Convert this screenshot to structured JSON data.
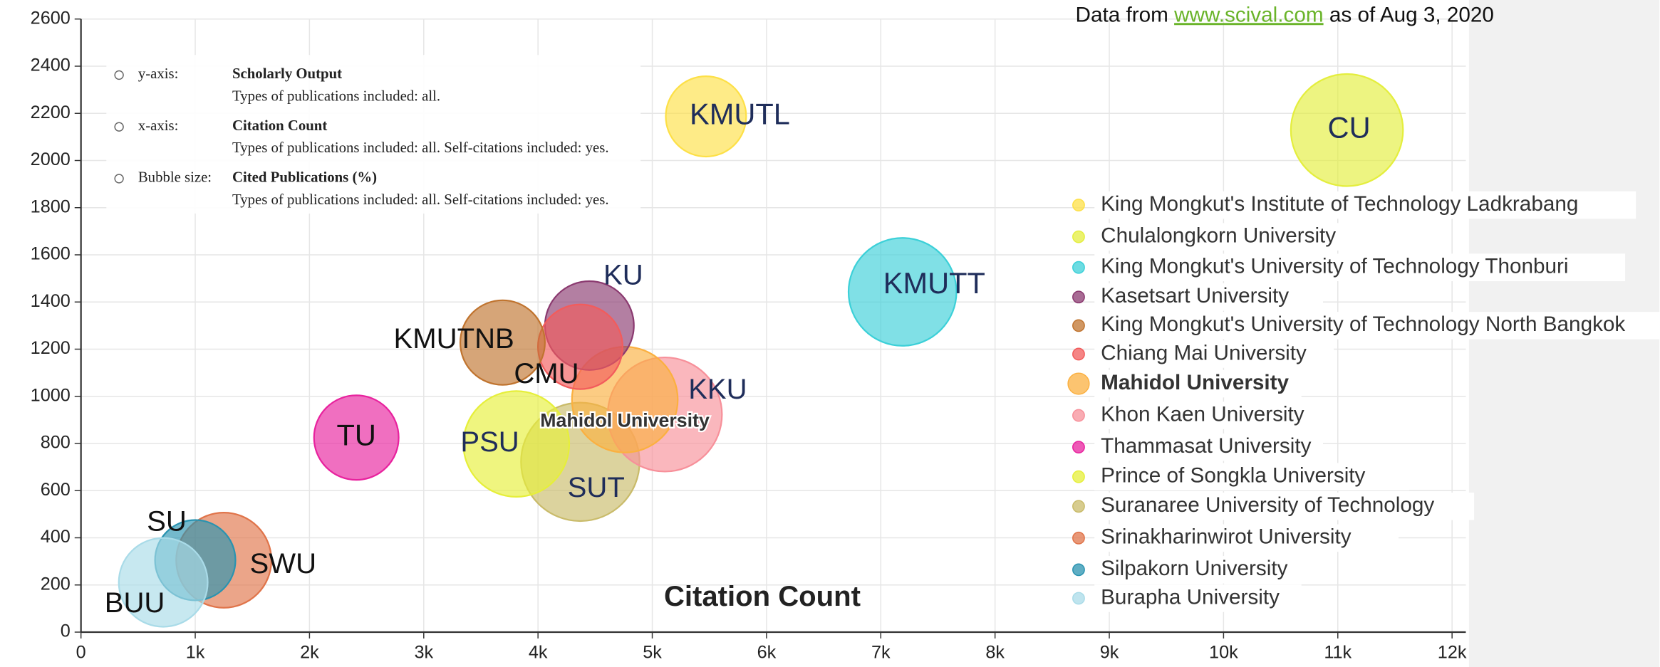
{
  "chart_data": {
    "type": "bubble",
    "source": {
      "prefix": "Data from",
      "link": "www.scival.com",
      "suffix": "as of Aug 3, 2020"
    },
    "x_label": "Citation Count",
    "info": [
      {
        "axis": "y-axis:",
        "metric": "Scholarly Output",
        "note": "Types of publications included: all."
      },
      {
        "axis": "x-axis:",
        "metric": "Citation Count",
        "note": "Types of publications included: all. Self-citations included: yes."
      },
      {
        "axis": "Bubble size:",
        "metric": "Cited Publications (%)",
        "note": "Types of publications included: all. Self-citations included: yes."
      }
    ],
    "xlim": [
      0,
      12000
    ],
    "ylim": [
      0,
      2600
    ],
    "xticks": [
      0,
      {
        "value": 1000,
        "label": "1k"
      },
      {
        "value": 2000,
        "label": "2k"
      },
      {
        "value": 3000,
        "label": "3k"
      },
      {
        "value": 4000,
        "label": "4k"
      },
      {
        "value": 5000,
        "label": "5k"
      },
      {
        "value": 6000,
        "label": "6k"
      },
      {
        "value": 7000,
        "label": "7k"
      },
      {
        "value": 8000,
        "label": "8k"
      },
      {
        "value": 9000,
        "label": "9k"
      },
      {
        "value": 10000,
        "label": "10k"
      },
      {
        "value": 11000,
        "label": "11k"
      },
      {
        "value": 12000,
        "label": "12k"
      }
    ],
    "yticks": [
      0,
      200,
      400,
      600,
      800,
      1000,
      1200,
      1400,
      1600,
      1800,
      2000,
      2200,
      2400,
      2600
    ],
    "grid": true,
    "series": [
      {
        "name": "King Mongkut's Institute of Technology Ladkrabang",
        "label": "KMUTL",
        "color": "#fde047",
        "x": [
          5470
        ],
        "values": [
          2187
        ],
        "sizes": [
          38
        ]
      },
      {
        "name": "Chulalongkorn University",
        "label": "CU",
        "color": "#e4ee3e",
        "x": [
          11080
        ],
        "values": [
          2129
        ],
        "sizes": [
          53
        ]
      },
      {
        "name": "King Mongkut's University of Technology Thonburi",
        "label": "KMUTT",
        "color": "#3cd0d8",
        "x": [
          7190
        ],
        "values": [
          1443
        ],
        "sizes": [
          51
        ]
      },
      {
        "name": "Kasetsart University",
        "label": "KU",
        "color": "#8b3a70",
        "x": [
          4450
        ],
        "values": [
          1300
        ],
        "sizes": [
          42
        ]
      },
      {
        "name": "King Mongkut's University of Technology North Bangkok",
        "label": "KMUTNB",
        "color": "#c0742f",
        "x": [
          3690
        ],
        "values": [
          1228
        ],
        "sizes": [
          40
        ]
      },
      {
        "name": "Chiang Mai University",
        "label": "CMU",
        "color": "#f25c5c",
        "x": [
          4370
        ],
        "values": [
          1210
        ],
        "sizes": [
          40
        ]
      },
      {
        "name": "Mahidol University",
        "label": "Mahidol University",
        "color": "#fbb040",
        "x": [
          4760
        ],
        "values": [
          986
        ],
        "sizes": [
          50
        ]
      },
      {
        "name": "Khon Kaen University",
        "label": "KKU",
        "color": "#f7909a",
        "x": [
          5110
        ],
        "values": [
          923
        ],
        "sizes": [
          54
        ]
      },
      {
        "name": "Thammasat University",
        "label": "TU",
        "color": "#e8229e",
        "x": [
          2410
        ],
        "values": [
          825
        ],
        "sizes": [
          40
        ]
      },
      {
        "name": "Prince of Songkla University",
        "label": "PSU",
        "color": "#e6ef3a",
        "x": [
          3810
        ],
        "values": [
          798
        ],
        "sizes": [
          50
        ]
      },
      {
        "name": "Suranaree University of Technology",
        "label": "SUT",
        "color": "#c9bb6a",
        "x": [
          4370
        ],
        "values": [
          722
        ],
        "sizes": [
          56
        ]
      },
      {
        "name": "Srinakharinwirot University",
        "label": "SWU",
        "color": "#e0744a",
        "x": [
          1250
        ],
        "values": [
          305
        ],
        "sizes": [
          45
        ]
      },
      {
        "name": "Silpakorn University",
        "label": "SU",
        "color": "#2a93b0",
        "x": [
          1000
        ],
        "values": [
          305
        ],
        "sizes": [
          38
        ]
      },
      {
        "name": "Burapha University",
        "label": "BUU",
        "color": "#a9dbe8",
        "x": [
          720
        ],
        "values": [
          211
        ],
        "sizes": [
          42
        ]
      }
    ]
  }
}
